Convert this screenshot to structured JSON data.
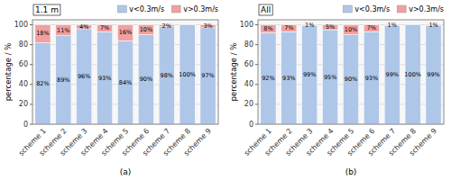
{
  "chart_data": [
    {
      "type": "bar",
      "stacked": true,
      "xlabel": "(a)",
      "ylabel": "percentage / %",
      "annotations": [
        "1.1 m"
      ],
      "categories": [
        "scheme 1",
        "scheme 2",
        "scheme 3",
        "scheme 4",
        "scheme 5",
        "scheme 6",
        "scheme 7",
        "scheme 8",
        "scheme 9"
      ],
      "series": [
        {
          "name": "v<0.3m/s",
          "color": "#aec6e8",
          "values": [
            82,
            89,
            96,
            93,
            84,
            90,
            98,
            100,
            97
          ],
          "value_labels": [
            "82%",
            "89%",
            "96%",
            "93%",
            "84%",
            "90%",
            "98%",
            "100%",
            "97%"
          ]
        },
        {
          "name": "v>0.3m/s",
          "color": "#f0a0a0",
          "values": [
            18,
            11,
            4,
            7,
            16,
            10,
            2,
            0,
            3
          ],
          "value_labels": [
            "18%",
            "11%",
            "4%",
            "7%",
            "16%",
            "10%",
            "2%",
            null,
            "3%"
          ]
        }
      ],
      "ylim": [
        0,
        105
      ],
      "yticks": [
        0,
        20,
        40,
        60,
        80,
        100
      ],
      "grid": true,
      "legend": "top",
      "data_labels": true
    },
    {
      "type": "bar",
      "stacked": true,
      "xlabel": "(b)",
      "ylabel": "percentage / %",
      "annotations": [
        "All"
      ],
      "categories": [
        "scheme 1",
        "scheme 2",
        "scheme 3",
        "scheme 4",
        "scheme 5",
        "scheme 6",
        "scheme 7",
        "scheme 8",
        "scheme 9"
      ],
      "series": [
        {
          "name": "v<0.3m/s",
          "color": "#aec6e8",
          "values": [
            92,
            93,
            99,
            95,
            90,
            93,
            99,
            100,
            99
          ],
          "value_labels": [
            "92%",
            "93%",
            "99%",
            "95%",
            "90%",
            "93%",
            "99%",
            "100%",
            "99%"
          ]
        },
        {
          "name": "v>0.3m/s",
          "color": "#f0a0a0",
          "values": [
            8,
            7,
            1,
            5,
            10,
            7,
            1,
            0,
            1
          ],
          "value_labels": [
            "8%",
            "7%",
            "1%",
            "5%",
            "10%",
            "7%",
            "1%",
            null,
            "1%"
          ]
        }
      ],
      "ylim": [
        0,
        105
      ],
      "yticks": [
        0,
        20,
        40,
        60,
        80,
        100
      ],
      "grid": true,
      "legend": "top",
      "data_labels": true
    }
  ]
}
